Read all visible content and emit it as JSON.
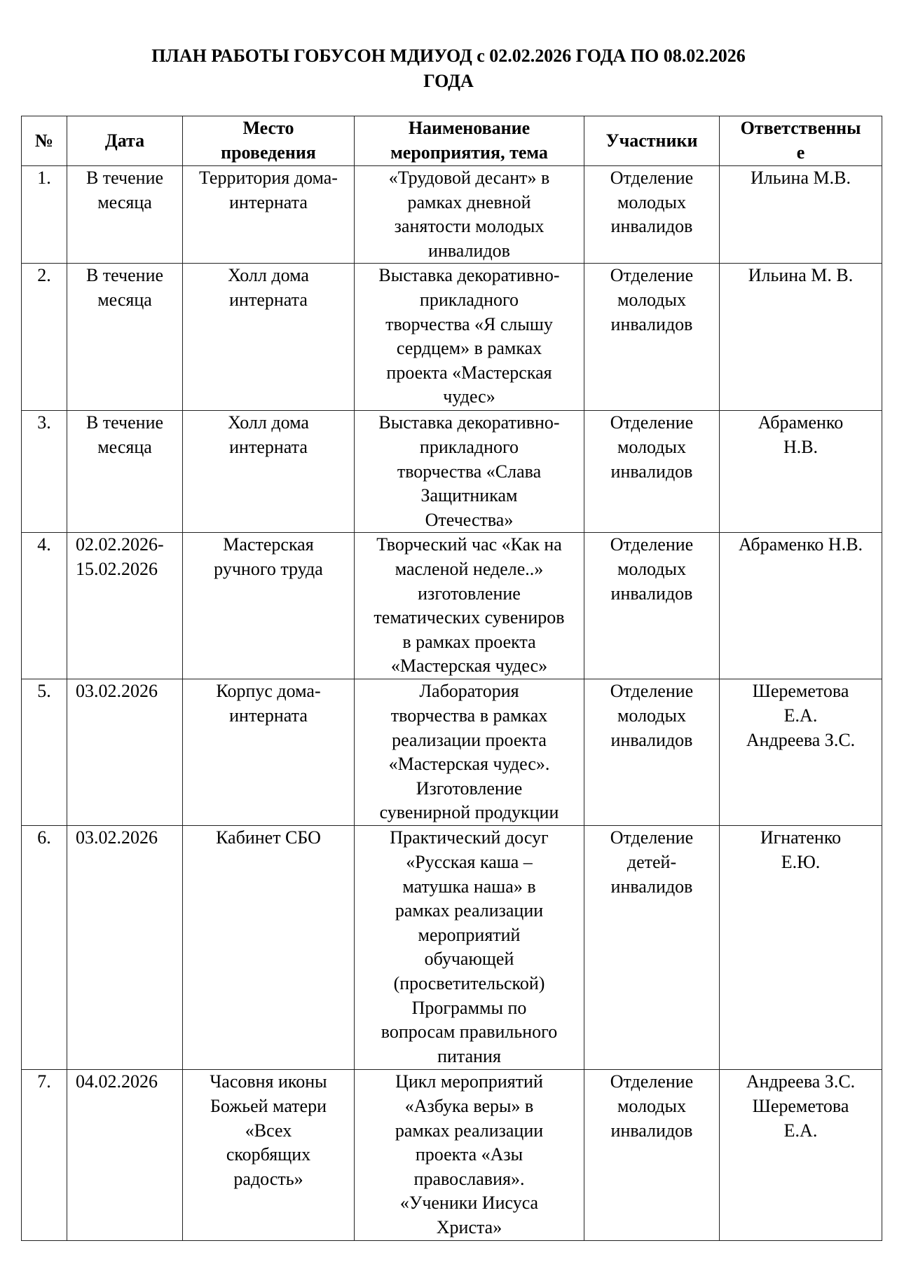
{
  "title": "ПЛАН РАБОТЫ ГОБУСОН МДИУОД с 02.02.2026 ГОДА ПО 08.02.2026\nГОДА",
  "headers": [
    "№",
    "Дата",
    "Место\nпроведения",
    "Наименование\nмероприятия, тема",
    "Участники",
    "Ответственны\nе"
  ],
  "rows": [
    {
      "num": "1.",
      "date": "В течение\nмесяца",
      "place": "Территория дома-\nинтерната",
      "event": "«Трудовой десант» в\nрамках дневной\nзанятости молодых\nинвалидов",
      "participants": "Отделение\nмолодых\nинвалидов",
      "responsible": "Ильина М.В."
    },
    {
      "num": "2.",
      "date": "В течение\nмесяца",
      "place": "Холл дома\nинтерната",
      "event": "Выставка декоративно-\nприкладного\nтворчества «Я слышу\nсердцем» в рамках\nпроекта «Мастерская\nчудес»",
      "participants": "Отделение\nмолодых\nинвалидов",
      "responsible": "Ильина М. В."
    },
    {
      "num": "3.",
      "date": "В течение\nмесяца",
      "place": "Холл дома\nинтерната",
      "event": "Выставка декоративно-\nприкладного\nтворчества «Слава\nЗащитникам\nОтечества»",
      "participants": "Отделение\nмолодых\nинвалидов",
      "responsible": "Абраменко\nН.В."
    },
    {
      "num": "4.",
      "date": "02.02.2026-\n15.02.2026",
      "place": "Мастерская\nручного труда",
      "event": "Творческий час «Как на\nмасленой неделе..»\nизготовление\nтематических сувениров\nв рамках проекта\n«Мастерская чудес»",
      "participants": "Отделение\nмолодых\nинвалидов",
      "responsible": "Абраменко Н.В."
    },
    {
      "num": "5.",
      "date": "03.02.2026",
      "place": "Корпус дома-\nинтерната",
      "event": "Лаборатория\nтворчества в рамках\nреализации проекта\n«Мастерская чудес».\nИзготовление\nсувенирной продукции",
      "participants": "Отделение\nмолодых\nинвалидов",
      "responsible": "Шереметова\nЕ.А.\nАндреева З.С."
    },
    {
      "num": "6.",
      "date": "03.02.2026",
      "place": "Кабинет СБО",
      "event": "Практический  досуг\n«Русская каша –\nматушка наша» в\nрамках  реализации\nмероприятий\nобучающей\n(просветительской)\nПрограммы по\nвопросам правильного\nпитания",
      "participants": "Отделение\nдетей-\nинвалидов",
      "responsible": "Игнатенко\nЕ.Ю."
    },
    {
      "num": "7.",
      "date": "04.02.2026",
      "place": "Часовня иконы\nБожьей матери\n«Всех\nскорбящих\nрадость»",
      "event": "Цикл мероприятий\n«Азбука веры» в\nрамках реализации\nпроекта «Азы\nправославия».\n«Ученики Иисуса\nХриста»",
      "participants": "Отделение\nмолодых\nинвалидов",
      "responsible": "Андреева З.С.\nШереметова\nЕ.А."
    }
  ]
}
